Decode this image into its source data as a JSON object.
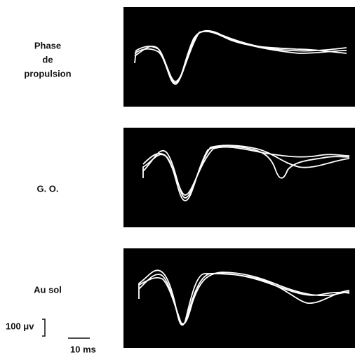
{
  "panels": [
    {
      "label": [
        "Phase",
        "de",
        "propulsion"
      ]
    },
    {
      "label": [
        "G. O."
      ]
    },
    {
      "label": [
        "Au sol"
      ]
    }
  ],
  "scale": {
    "amplitude": "100 μv",
    "time": "10 ms"
  }
}
